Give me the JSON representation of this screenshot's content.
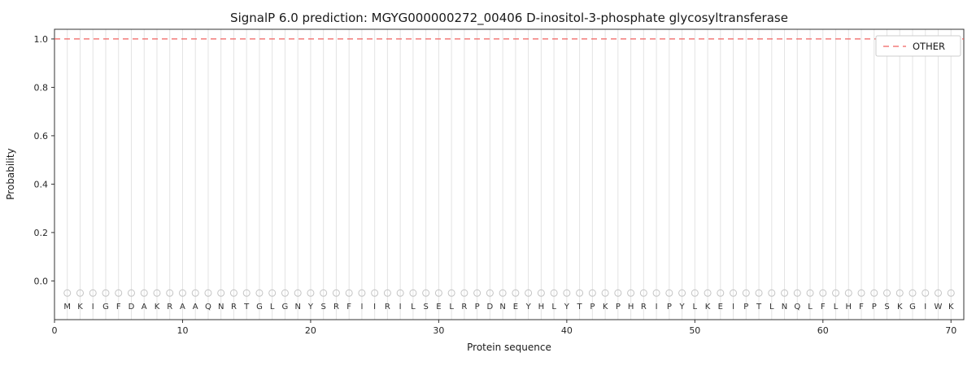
{
  "chart_data": {
    "type": "line",
    "title": "SignalP 6.0 prediction: MGYG000000272_00406 D-inositol-3-phosphate glycosyltransferase",
    "xlabel": "Protein sequence",
    "ylabel": "Probability",
    "xlim": [
      0,
      71
    ],
    "ylim": [
      -0.16,
      1.04
    ],
    "xticks": [
      0,
      10,
      20,
      30,
      40,
      50,
      60,
      70
    ],
    "yticks": [
      0.0,
      0.2,
      0.4,
      0.6,
      0.8,
      1.0
    ],
    "grid": "vertical-per-residue",
    "sequence": "MKIGFDAKRAAQNRTGLGNYSRFIIRILSELRPDNEYHLYTPKPHRIPYLKEIPTLNQLFLHFPSKGIWK",
    "sequence_length": 70,
    "sequence_markers": {
      "symbol": "open-circle",
      "y": -0.05
    },
    "sequence_letters_y": -0.105,
    "series": [
      {
        "name": "OTHER",
        "color": "#f0605f",
        "linestyle": "dashed",
        "y_constant": 1.0,
        "x_span": [
          0,
          71
        ]
      }
    ],
    "legend": {
      "loc": "upper right",
      "entries": [
        {
          "label": "OTHER",
          "color": "#f0605f",
          "linestyle": "dashed"
        }
      ]
    },
    "colors": {
      "grid": "#e3e3e3",
      "frame": "#333333",
      "tick_label": "#262626",
      "marker": "#c4c4c4",
      "letter": "#303030",
      "legend_border": "#cccccc",
      "background": "#ffffff"
    }
  }
}
